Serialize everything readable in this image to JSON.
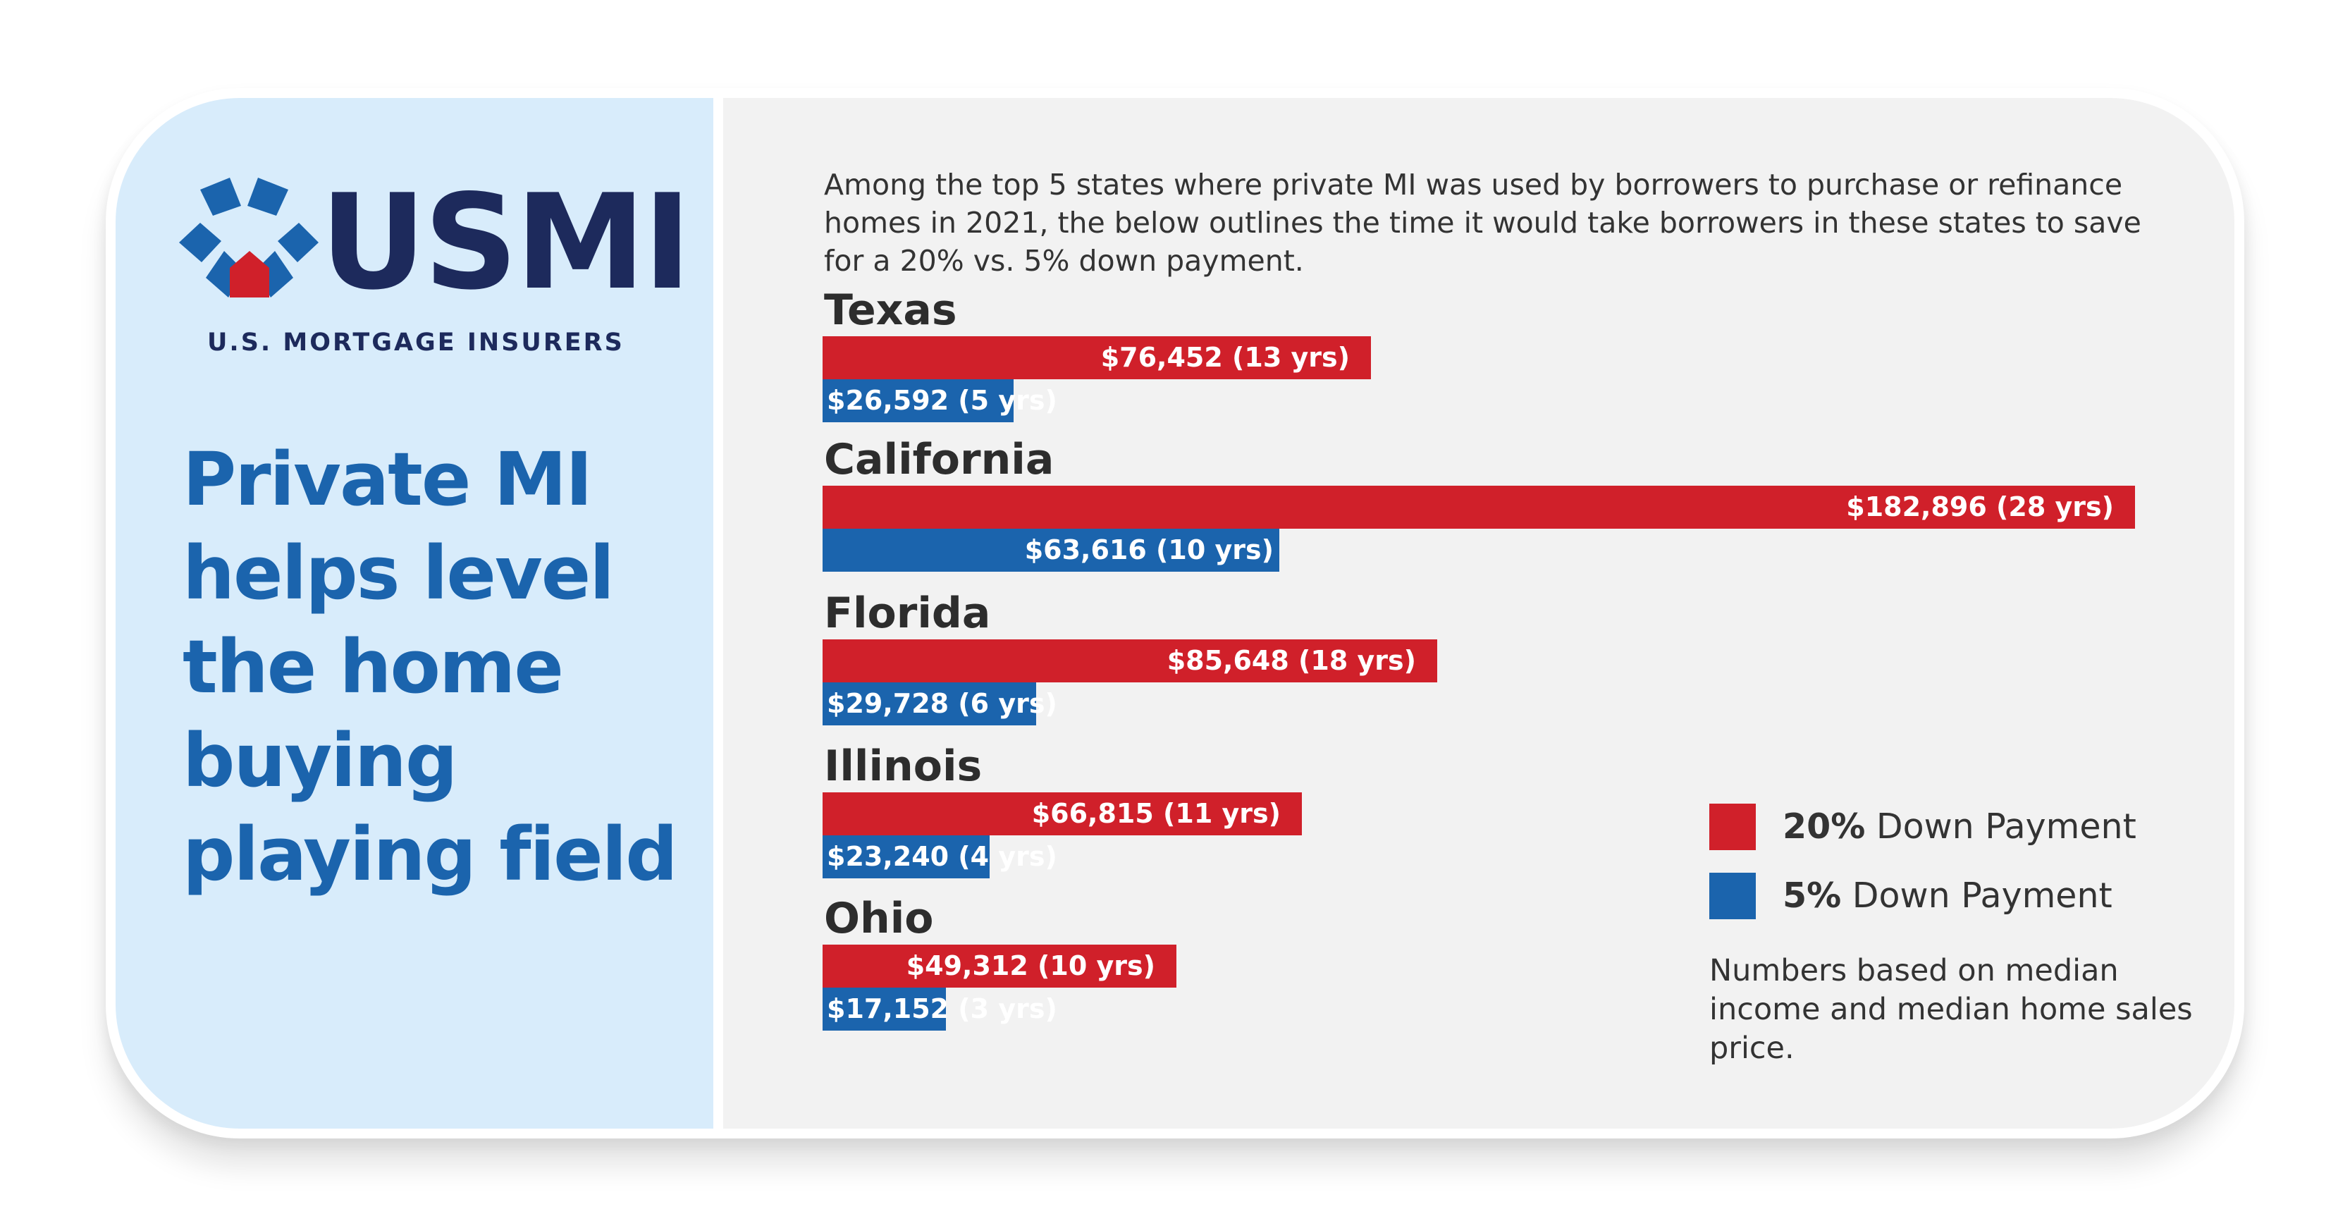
{
  "brand": {
    "wordmark": "USMI",
    "tagline": "U.S. MORTGAGE INSURERS",
    "colors": {
      "navy": "#1d2a5c",
      "blue": "#1b64ad",
      "red": "#d0202a"
    }
  },
  "headline": "Private MI helps level the home buying playing field",
  "intro": "Among the top 5 states where private MI was used by borrowers to purchase or refinance homes in 2021, the below outlines the time it would take borrowers in these states to save for a 20% vs. 5% down payment.",
  "legend": {
    "items": [
      {
        "pct": "20%",
        "text": "Down Payment",
        "color": "#d0202a"
      },
      {
        "pct": "5%",
        "text": "Down Payment",
        "color": "#1b64ad"
      }
    ]
  },
  "footnote": "Numbers based on median income and median home sales price.",
  "chart_data": {
    "type": "bar",
    "orientation": "horizontal",
    "categories": [
      "Texas",
      "California",
      "Florida",
      "Illinois",
      "Ohio"
    ],
    "series": [
      {
        "name": "20% Down Payment",
        "color": "#d0202a",
        "values": [
          76452,
          182896,
          85648,
          66815,
          49312
        ],
        "labels": [
          "$76,452 (13 yrs)",
          "$182,896 (28 yrs)",
          "$85,648 (18 yrs)",
          "$66,815 (11 yrs)",
          "$49,312 (10 yrs)"
        ]
      },
      {
        "name": "5% Down Payment",
        "color": "#1b64ad",
        "values": [
          26592,
          63616,
          29728,
          23240,
          17152
        ],
        "labels": [
          "$26,592 (5 yrs)",
          "$63,616 (10 yrs)",
          "$29,728 (6 yrs)",
          "$23,240 (4 yrs)",
          "$17,152 (3 yrs)"
        ]
      }
    ],
    "xlim": [
      0,
      182896
    ],
    "grid": false,
    "legend_position": "bottom-right"
  }
}
